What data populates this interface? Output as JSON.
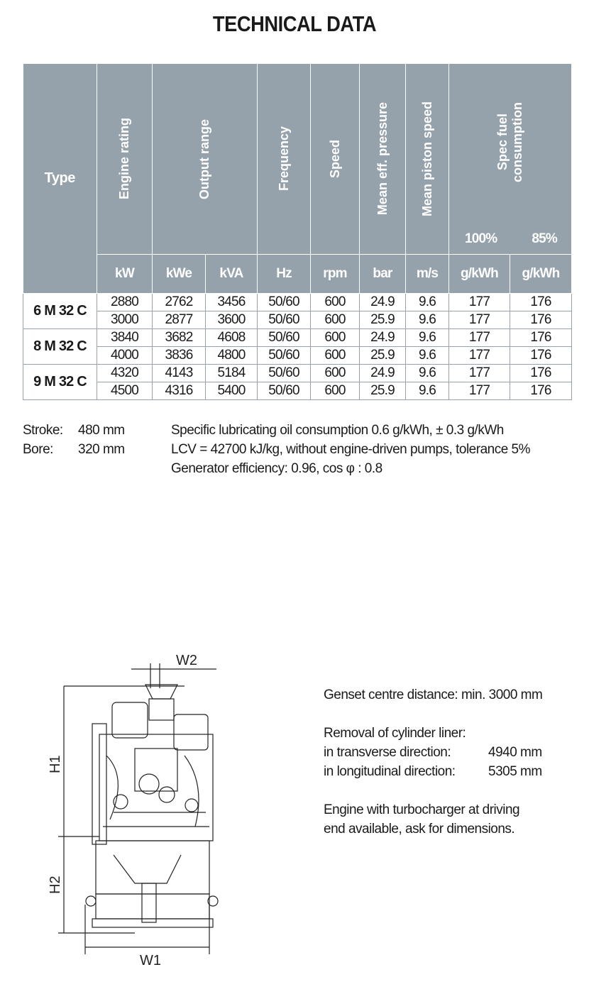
{
  "title": "TECHNICAL DATA",
  "table": {
    "headers": {
      "type": "Type",
      "engine_rating": "Engine rating",
      "output_range": "Output range",
      "frequency": "Frequency",
      "speed": "Speed",
      "mean_eff_pressure": "Mean eff. pressure",
      "mean_piston_speed": "Mean piston speed",
      "spec_fuel_1": "Spec fuel",
      "spec_fuel_2": "consumption",
      "pct_100": "100%",
      "pct_85": "85%"
    },
    "units": [
      "kW",
      "kWe",
      "kVA",
      "Hz",
      "rpm",
      "bar",
      "m/s",
      "g/kWh",
      "g/kWh"
    ],
    "groups": [
      {
        "type": "6 M 32 C",
        "rows": [
          [
            "2880",
            "2762",
            "3456",
            "50/60",
            "600",
            "24.9",
            "9.6",
            "177",
            "176"
          ],
          [
            "3000",
            "2877",
            "3600",
            "50/60",
            "600",
            "25.9",
            "9.6",
            "177",
            "176"
          ]
        ]
      },
      {
        "type": "8 M 32 C",
        "rows": [
          [
            "3840",
            "3682",
            "4608",
            "50/60",
            "600",
            "24.9",
            "9.6",
            "177",
            "176"
          ],
          [
            "4000",
            "3836",
            "4800",
            "50/60",
            "600",
            "25.9",
            "9.6",
            "177",
            "176"
          ]
        ]
      },
      {
        "type": "9 M 32 C",
        "rows": [
          [
            "4320",
            "4143",
            "5184",
            "50/60",
            "600",
            "24.9",
            "9.6",
            "177",
            "176"
          ],
          [
            "4500",
            "4316",
            "5400",
            "50/60",
            "600",
            "25.9",
            "9.6",
            "177",
            "176"
          ]
        ]
      }
    ]
  },
  "notes": {
    "stroke_label": "Stroke:",
    "stroke_value": "480 mm",
    "bore_label": "Bore:",
    "bore_value": "320 mm",
    "line1": "Specific lubricating oil consumption 0.6 g/kWh, ± 0.3 g/kWh",
    "line2": "LCV = 42700 kJ/kg, without engine-driven pumps, tolerance 5%",
    "line3": "Generator efficiency: 0.96, cos φ : 0.8"
  },
  "drawing": {
    "w1": "W1",
    "w2": "W2",
    "h1": "H1",
    "h2": "H2"
  },
  "dimensions": {
    "centre_distance": "Genset centre distance: min. 3000 mm",
    "removal": "Removal of cylinder liner:",
    "transverse_label": "in transverse direction:",
    "transverse_value": "4940 mm",
    "longitudinal_label": "in longitudinal direction:",
    "longitudinal_value": "5305 mm",
    "turbo1": "Engine with turbocharger at driving",
    "turbo2": "end available, ask for dimensions."
  }
}
